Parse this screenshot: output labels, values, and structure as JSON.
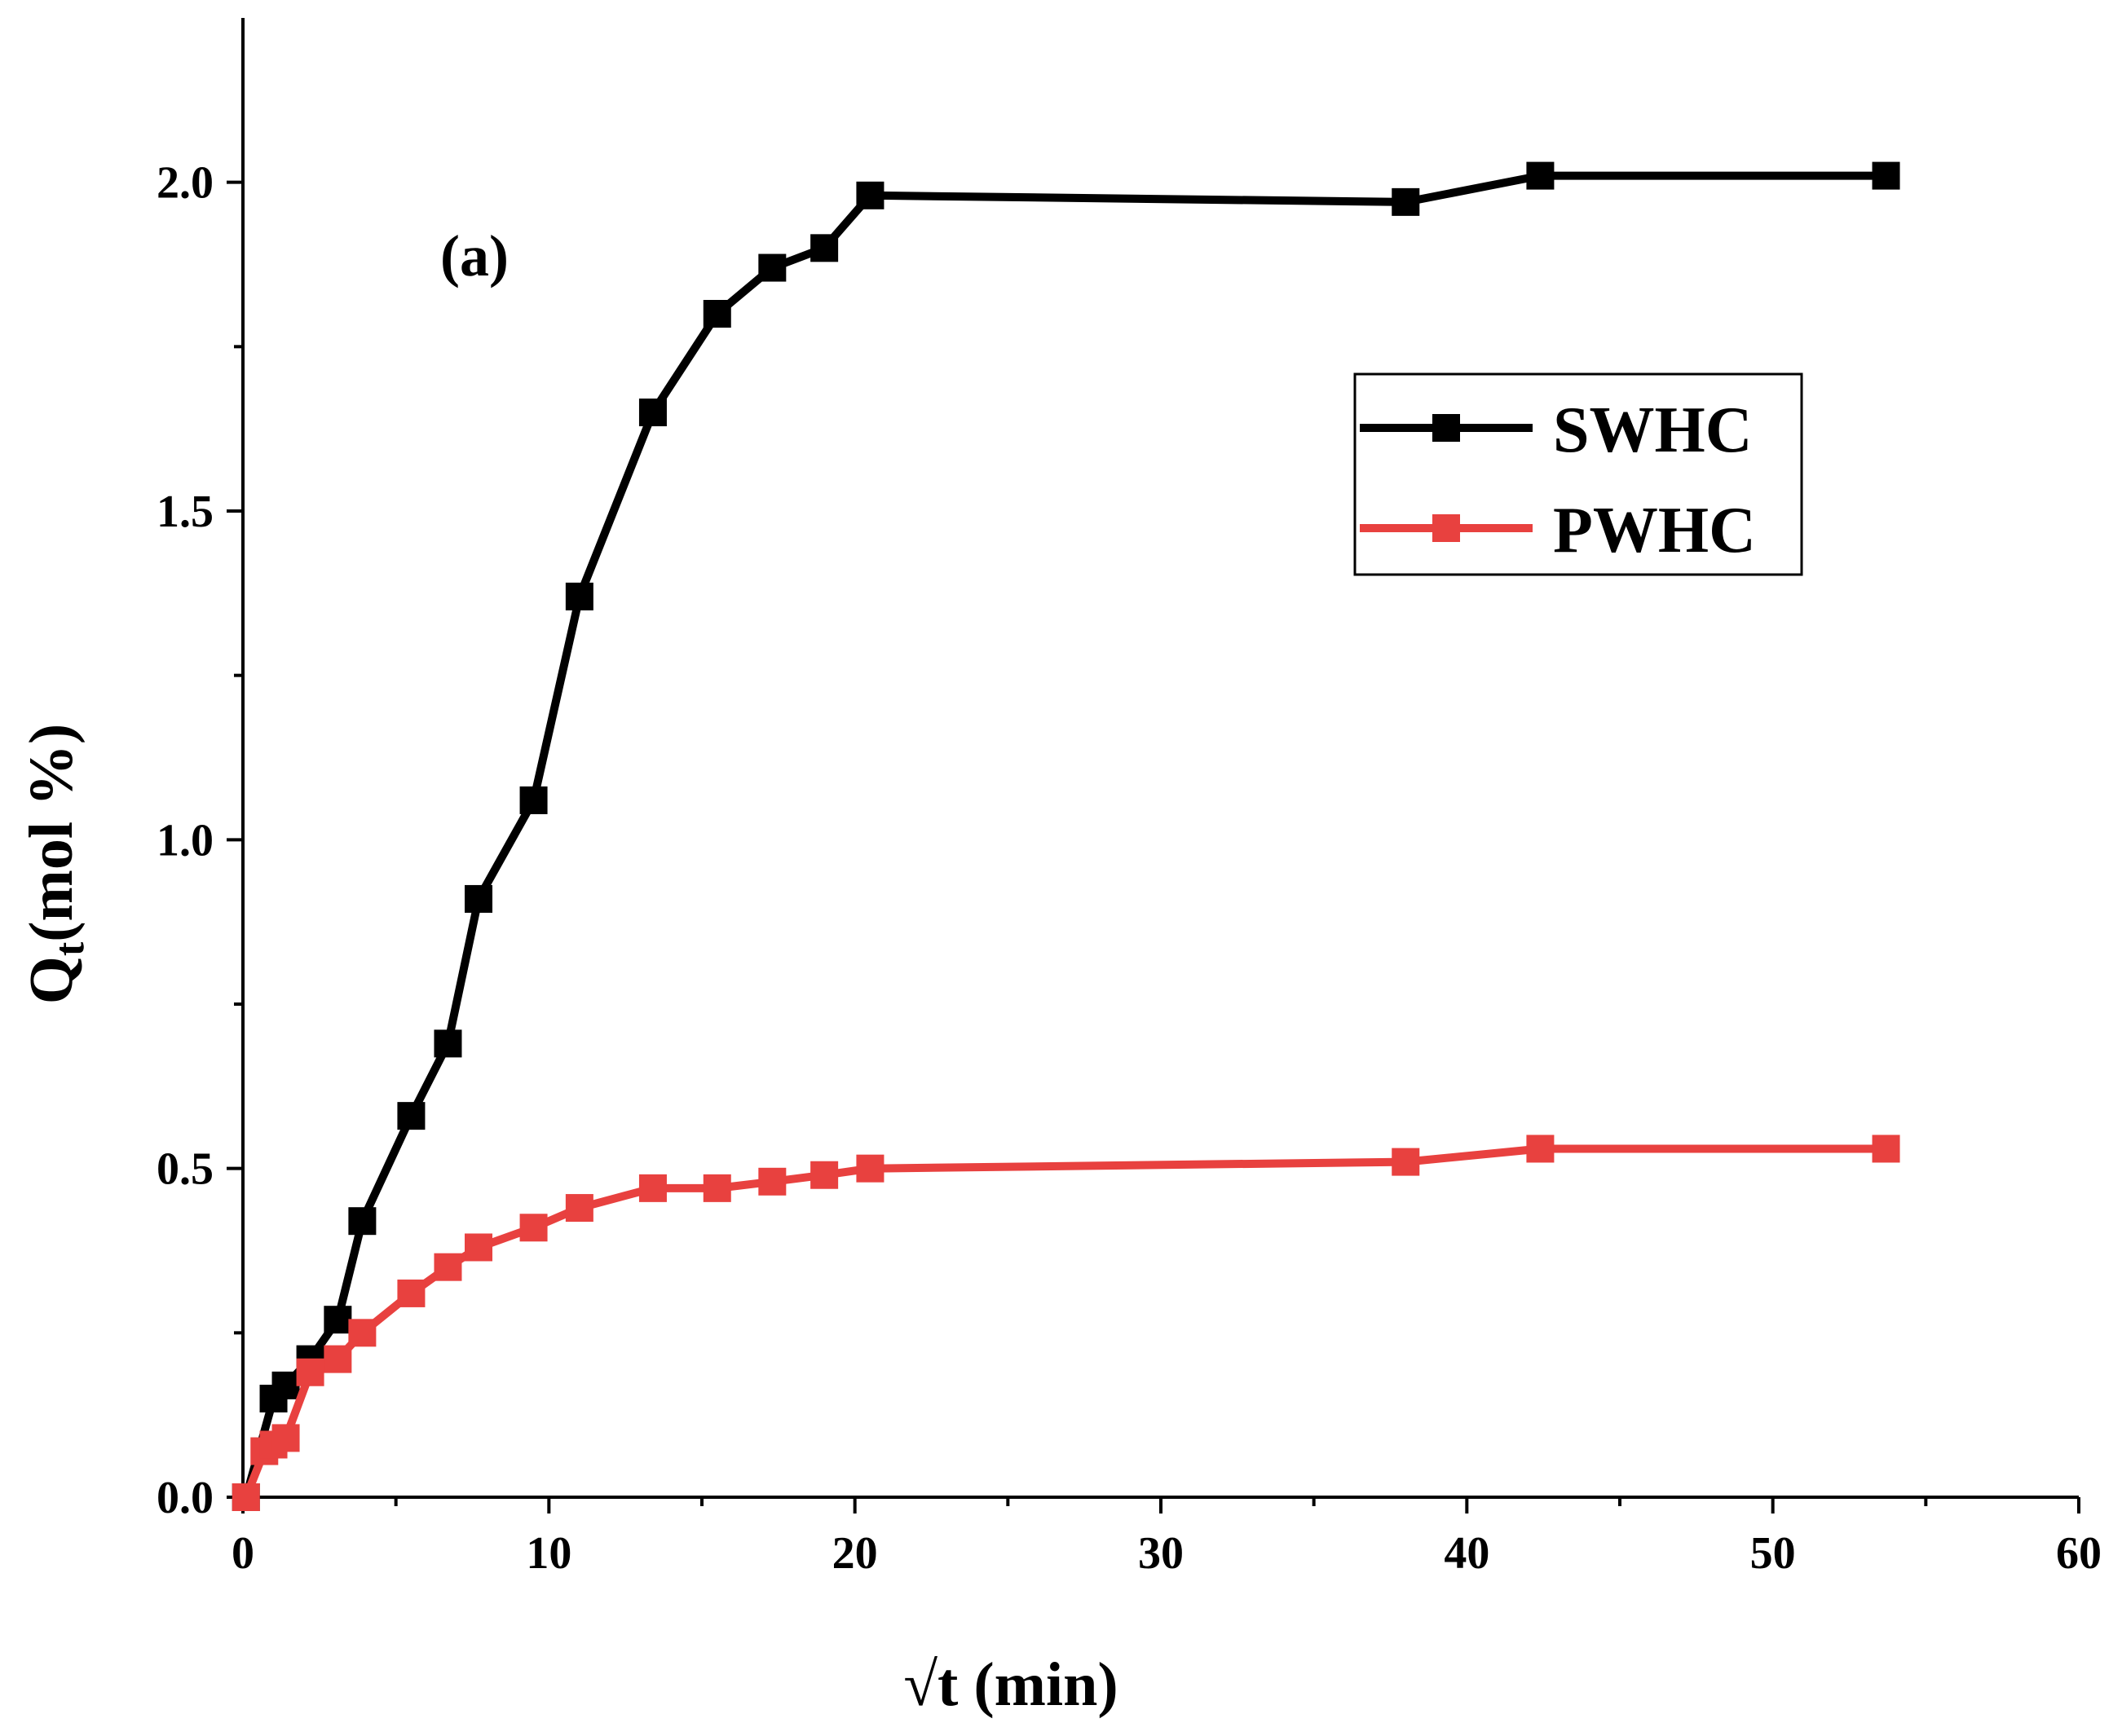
{
  "chart_data": {
    "type": "line",
    "panel_label": "(a)",
    "xlabel": "√t (min)",
    "ylabel": {
      "main": "Q",
      "sub": "t",
      "rest": "(mol %)"
    },
    "xlim": [
      0,
      60
    ],
    "ylim": [
      0,
      2.25
    ],
    "xticks": [
      0,
      10,
      20,
      30,
      40,
      50,
      60
    ],
    "xtick_labels": [
      "0",
      "10",
      "20",
      "30",
      "40",
      "50",
      "60"
    ],
    "xminor": [
      5,
      15,
      25,
      35,
      45,
      55
    ],
    "yticks": [
      0,
      0.5,
      1.0,
      1.5,
      2.0
    ],
    "ytick_labels": [
      "0.0",
      "0.5",
      "1.0",
      "1.5",
      "2.0"
    ],
    "yminor": [
      0.25,
      0.75,
      1.25,
      1.75
    ],
    "grid": false,
    "legend_position": "upper-right",
    "series": [
      {
        "name": "SWHC",
        "color": "#000000",
        "marker": "square",
        "points": [
          [
            0.1,
            0.0
          ],
          [
            1.0,
            0.15
          ],
          [
            1.4,
            0.17
          ],
          [
            2.2,
            0.21
          ],
          [
            3.1,
            0.27
          ],
          [
            3.9,
            0.42
          ],
          [
            5.5,
            0.58
          ],
          [
            6.7,
            0.69
          ],
          [
            7.7,
            0.91
          ],
          [
            9.5,
            1.06
          ],
          [
            11.0,
            1.37
          ],
          [
            13.4,
            1.65
          ],
          [
            15.5,
            1.8
          ],
          [
            17.3,
            1.87
          ],
          [
            19.0,
            1.9
          ],
          [
            20.5,
            1.98
          ],
          [
            38.0,
            1.97
          ],
          [
            42.4,
            2.01
          ],
          [
            53.7,
            2.01
          ]
        ]
      },
      {
        "name": "PWHC",
        "color": "#e8413f",
        "marker": "square",
        "points": [
          [
            0.1,
            0.0
          ],
          [
            0.7,
            0.07
          ],
          [
            1.0,
            0.08
          ],
          [
            1.4,
            0.09
          ],
          [
            2.2,
            0.19
          ],
          [
            3.1,
            0.21
          ],
          [
            3.9,
            0.25
          ],
          [
            5.5,
            0.31
          ],
          [
            6.7,
            0.35
          ],
          [
            7.7,
            0.38
          ],
          [
            9.5,
            0.41
          ],
          [
            11.0,
            0.44
          ],
          [
            13.4,
            0.47
          ],
          [
            15.5,
            0.47
          ],
          [
            17.3,
            0.48
          ],
          [
            19.0,
            0.49
          ],
          [
            20.5,
            0.5
          ],
          [
            38.0,
            0.51
          ],
          [
            42.4,
            0.53
          ],
          [
            53.7,
            0.53
          ]
        ]
      }
    ]
  }
}
